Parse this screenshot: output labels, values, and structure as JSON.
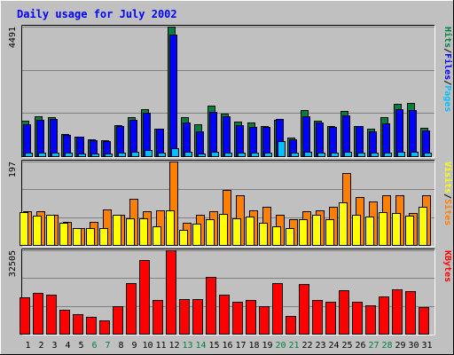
{
  "chart_data": {
    "type": "bar",
    "title": "Daily usage for July 2002",
    "colors": {
      "background": "#c0c0c0",
      "title": "#0000ff",
      "hits": "#008040",
      "files": "#0000ff",
      "pages": "#00c0ff",
      "visits": "#ffff00",
      "sites": "#ff8000",
      "kbytes": "#ff0000",
      "weekend_day_label": "#008040",
      "weekday_label": "#000000"
    },
    "days": [
      "1",
      "2",
      "3",
      "4",
      "5",
      "6",
      "7",
      "8",
      "9",
      "10",
      "11",
      "12",
      "13",
      "14",
      "15",
      "16",
      "17",
      "18",
      "19",
      "20",
      "21",
      "22",
      "23",
      "24",
      "25",
      "26",
      "27",
      "28",
      "29",
      "30",
      "31"
    ],
    "weekend_days": [
      "6",
      "7",
      "13",
      "14",
      "20",
      "21",
      "27",
      "28"
    ],
    "panels": [
      {
        "id": "traffic",
        "max_label": "4491",
        "ymax": 4491,
        "right_labels": [
          {
            "text": "Hits",
            "color": "#008040"
          },
          {
            "text": "/",
            "color": "#000000"
          },
          {
            "text": "Files",
            "color": "#0000ff"
          },
          {
            "text": "/",
            "color": "#000000"
          },
          {
            "text": "Pages",
            "color": "#00c0ff"
          }
        ],
        "series": [
          {
            "name": "Hits",
            "color": "#008040",
            "values": [
              1240,
              1380,
              1350,
              770,
              690,
              580,
              540,
              1080,
              1360,
              1630,
              960,
              4491,
              1360,
              1110,
              1760,
              1470,
              1200,
              1180,
              1050,
              1260,
              640,
              1610,
              1220,
              1060,
              1560,
              1060,
              940,
              1360,
              1820,
              1840,
              970
            ]
          },
          {
            "name": "Files",
            "color": "#0000ff",
            "values": [
              1120,
              1260,
              1300,
              740,
              670,
              560,
              510,
              1060,
              1270,
              1520,
              950,
              4210,
              1180,
              850,
              1550,
              1380,
              1090,
              1020,
              1020,
              1290,
              570,
              1380,
              1180,
              1030,
              1420,
              1040,
              870,
              1150,
              1630,
              1610,
              880
            ]
          },
          {
            "name": "Pages",
            "color": "#00c0ff",
            "values": [
              120,
              130,
              130,
              110,
              100,
              90,
              100,
              130,
              160,
              230,
              110,
              290,
              140,
              90,
              150,
              120,
              120,
              110,
              110,
              530,
              110,
              140,
              120,
              120,
              140,
              120,
              110,
              130,
              140,
              140,
              120
            ]
          }
        ]
      },
      {
        "id": "visits",
        "max_label": "197",
        "ymax": 197,
        "right_labels": [
          {
            "text": "Visits",
            "color": "#ffff00"
          },
          {
            "text": "/",
            "color": "#000000"
          },
          {
            "text": "Sites",
            "color": "#ff8000"
          }
        ],
        "series": [
          {
            "name": "Sites",
            "color": "#ff8000",
            "values": [
              80,
              80,
              72,
              55,
              40,
              55,
              83,
              72,
              108,
              80,
              82,
              197,
              53,
              72,
              80,
              130,
              117,
              82,
              90,
              72,
              60,
              80,
              82,
              90,
              170,
              113,
              103,
              117,
              118,
              75,
              117
            ]
          },
          {
            "name": "Visits",
            "color": "#ffff00",
            "values": [
              78,
              70,
              72,
              52,
              40,
              40,
              40,
              72,
              62,
              62,
              45,
              82,
              35,
              50,
              60,
              73,
              62,
              68,
              52,
              45,
              40,
              60,
              72,
              60,
              100,
              72,
              68,
              78,
              75,
              70,
              90
            ]
          }
        ]
      },
      {
        "id": "kbytes",
        "max_label": "32505",
        "ymax": 32505,
        "right_labels": [
          {
            "text": "KBytes",
            "color": "#ff0000"
          }
        ],
        "series": [
          {
            "name": "KBytes",
            "color": "#ff0000",
            "values": [
              14200,
              15800,
              15100,
              9400,
              7600,
              6400,
              5200,
              10700,
              19800,
              28600,
              13000,
              32505,
              13500,
              13500,
              22300,
              15300,
              12300,
              13200,
              10800,
              19700,
              6900,
              19400,
              13300,
              12400,
              17000,
              12600,
              11200,
              14500,
              17200,
              16700,
              10500
            ]
          }
        ]
      }
    ]
  }
}
